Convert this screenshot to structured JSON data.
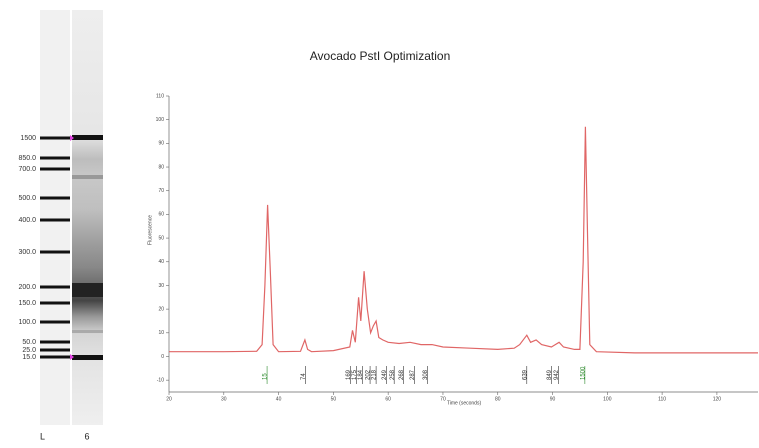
{
  "chart_data": {
    "type": "line",
    "title": "Avocado PstI Optimization",
    "x_label": "Time (seconds)",
    "y_label": "Fluorescence",
    "color": "#e06666",
    "x": [
      20,
      30,
      36,
      37,
      37.5,
      38,
      38.5,
      39,
      40,
      44,
      44.8,
      45.3,
      46,
      50,
      53,
      53.5,
      54,
      54.6,
      55,
      55.6,
      56.2,
      56.8,
      57.3,
      57.8,
      58.3,
      59,
      60,
      62,
      64,
      66,
      68,
      70,
      75,
      80,
      83,
      84,
      85.3,
      86,
      87,
      88,
      89.8,
      90.5,
      91.2,
      92,
      94,
      95,
      95.6,
      96,
      96.4,
      96.8,
      98,
      105,
      127.5
    ],
    "values": [
      2,
      2,
      2.2,
      5,
      30,
      64,
      35,
      5,
      2,
      2.2,
      7,
      3,
      2,
      2.5,
      4,
      11,
      6,
      25,
      15,
      36,
      20,
      10,
      13,
      15,
      8,
      7,
      6,
      5.5,
      6,
      5,
      5,
      4,
      3.5,
      3,
      3.5,
      5,
      9,
      6,
      7,
      5,
      4,
      5,
      6,
      4,
      3,
      3,
      40,
      97,
      50,
      5,
      2,
      1.5,
      1.5
    ],
    "xlim": [
      20,
      127.5
    ],
    "ylim": [
      -15,
      110
    ],
    "xticks": [
      20,
      30,
      40,
      50,
      60,
      70,
      80,
      90,
      100,
      110,
      120
    ],
    "yticks": [
      -10,
      0,
      10,
      20,
      30,
      40,
      50,
      60,
      70,
      80,
      90,
      100,
      110
    ],
    "peaks": [
      {
        "label": "15",
        "time": 37.9,
        "color": "#2e8b2e"
      },
      {
        "label": "74",
        "time": 44.9,
        "color": "#333333"
      },
      {
        "label": "169",
        "time": 53.1,
        "color": "#333333"
      },
      {
        "label": "175",
        "time": 54.2,
        "color": "#333333"
      },
      {
        "label": "184",
        "time": 55.3,
        "color": "#333333"
      },
      {
        "label": "202",
        "time": 56.7,
        "color": "#333333"
      },
      {
        "label": "218",
        "time": 57.8,
        "color": "#333333"
      },
      {
        "label": "249",
        "time": 59.7,
        "color": "#333333"
      },
      {
        "label": "258",
        "time": 61.1,
        "color": "#333333"
      },
      {
        "label": "268",
        "time": 62.8,
        "color": "#333333"
      },
      {
        "label": "287",
        "time": 64.8,
        "color": "#333333"
      },
      {
        "label": "308",
        "time": 67.2,
        "color": "#333333"
      },
      {
        "label": "639",
        "time": 85.3,
        "color": "#333333"
      },
      {
        "label": "849",
        "time": 89.8,
        "color": "#333333"
      },
      {
        "label": "942",
        "time": 91.1,
        "color": "#333333"
      },
      {
        "label": "1500",
        "time": 95.9,
        "color": "#2e8b2e"
      }
    ]
  },
  "gel": {
    "lanes": [
      "L",
      "6"
    ],
    "ladder": [
      "1500",
      "850.0",
      "700.0",
      "500.0",
      "400.0",
      "300.0",
      "200.0",
      "150.0",
      "100.0",
      "50.0",
      "25.0",
      "15.0"
    ]
  }
}
